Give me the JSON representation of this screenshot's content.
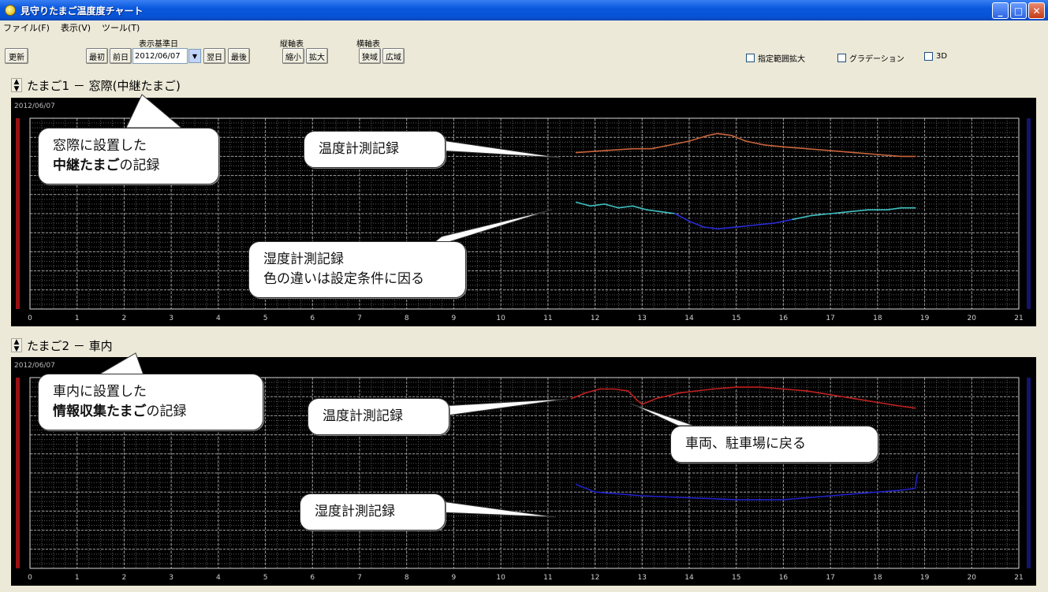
{
  "window": {
    "title": "見守りたまご温度度チャート"
  },
  "menu": [
    "ファイル(F)",
    "表示(V)",
    "ツール(T)"
  ],
  "toolbar": {
    "refresh": "更新",
    "date_group_label": "表示基準日",
    "first": "最初",
    "prev_day": "前日",
    "date_value": "2012/06/07",
    "next_day": "翌日",
    "last": "最後",
    "vertical_label": "縦軸表",
    "v_shrink": "縮小",
    "v_expand": "拡大",
    "horizontal_label": "横軸表",
    "h_shrink": "狭域",
    "h_expand": "広域",
    "check_range": "指定範囲拡大",
    "check_gradation": "グラデーション",
    "check_3d": "3D"
  },
  "section1": {
    "title": "たまご1 － 窓際(中継たまご)",
    "date": "2012/06/07"
  },
  "section2": {
    "title": "たまご2 － 車内",
    "date": "2012/06/07"
  },
  "callouts": {
    "c1_line1": "窓際に設置した",
    "c1_bold": "中継たまご",
    "c1_rest": "の記録",
    "c2": "温度計測記録",
    "c3_line1": "湿度計測記録",
    "c3_line2": "色の違いは設定条件に因る",
    "c4_line1": "車内に設置した",
    "c4_bold": "情報収集たまご",
    "c4_rest": "の記録",
    "c5": "温度計測記録",
    "c6": "車両、駐車場に戻る",
    "c7": "湿度計測記録"
  },
  "chart_data": [
    {
      "type": "line",
      "title": "たまご1 － 窓際(中継たまご)",
      "x_ticks": [
        0,
        1,
        2,
        3,
        4,
        5,
        6,
        7,
        8,
        9,
        10,
        11,
        12,
        13,
        14,
        15,
        16,
        17,
        18,
        19,
        20,
        21
      ],
      "xlim": [
        0,
        21
      ],
      "ylim": [
        0,
        100
      ],
      "grid": true,
      "series": [
        {
          "color": "#c8643c",
          "x": [
            11.6,
            12.2,
            12.8,
            13.2,
            13.6,
            14.0,
            14.4,
            14.6,
            14.9,
            15.2,
            15.6,
            16.0,
            16.5,
            17.0,
            17.5,
            18.0,
            18.5,
            18.8
          ],
          "y": [
            82,
            83,
            84,
            84,
            86,
            88,
            91,
            92,
            91,
            88,
            86,
            85,
            84,
            83,
            82,
            81,
            80,
            80
          ]
        },
        {
          "color": "#40c0c0",
          "x": [
            11.6,
            11.9,
            12.2,
            12.5,
            12.8,
            13.1,
            13.4,
            13.7
          ],
          "y": [
            56,
            54,
            55,
            53,
            54,
            52,
            51,
            50
          ]
        },
        {
          "color": "#2a2ad8",
          "x": [
            13.7,
            14.0,
            14.3,
            14.6,
            15.0,
            15.4,
            15.8,
            16.2
          ],
          "y": [
            50,
            46,
            43,
            42,
            43,
            44,
            45,
            47
          ]
        },
        {
          "color": "#40c0c0",
          "x": [
            16.2,
            16.6,
            17.0,
            17.4,
            17.8,
            18.2,
            18.5,
            18.8
          ],
          "y": [
            47,
            49,
            50,
            51,
            52,
            52,
            53,
            53
          ]
        }
      ]
    },
    {
      "type": "line",
      "title": "たまご2 － 車内",
      "x_ticks": [
        0,
        1,
        2,
        3,
        4,
        5,
        6,
        7,
        8,
        9,
        10,
        11,
        12,
        13,
        14,
        15,
        16,
        17,
        18,
        19,
        20,
        21
      ],
      "xlim": [
        0,
        21
      ],
      "ylim": [
        0,
        100
      ],
      "grid": true,
      "series": [
        {
          "color": "#c02020",
          "x": [
            11.5,
            11.8,
            12.1,
            12.4,
            12.7,
            12.9,
            13.0,
            13.3,
            13.8,
            14.5,
            15.0,
            15.5,
            16.0,
            16.5,
            17.0,
            17.5,
            18.0,
            18.5,
            18.8
          ],
          "y": [
            89,
            92,
            94,
            94,
            93,
            88,
            86,
            89,
            92,
            94,
            95,
            95,
            94,
            93,
            91,
            89,
            87,
            85,
            84
          ]
        },
        {
          "color": "#2020c8",
          "x": [
            11.6,
            12.0,
            12.5,
            13.0,
            14.0,
            15.0,
            16.0,
            16.5,
            17.0,
            17.5,
            18.0,
            18.5,
            18.8,
            18.85
          ],
          "y": [
            44,
            40,
            39,
            38,
            37,
            36,
            36,
            37,
            38,
            39,
            40,
            41,
            42,
            50
          ]
        }
      ]
    }
  ]
}
